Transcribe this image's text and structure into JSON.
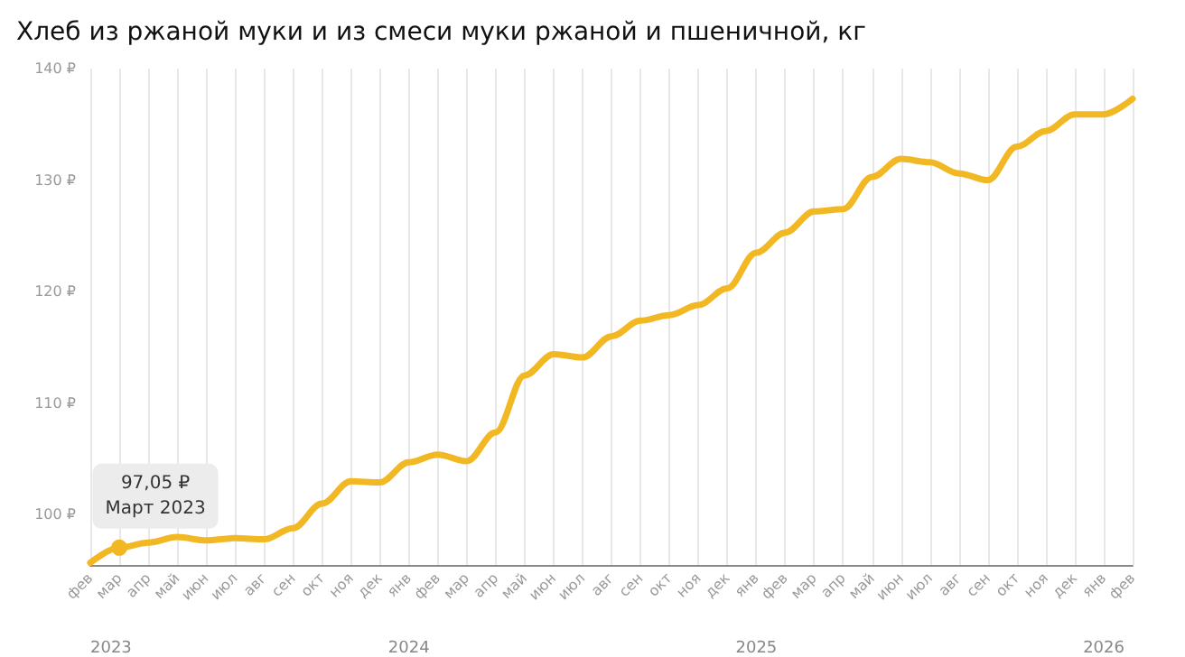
{
  "chart_data": {
    "type": "line",
    "title": "Хлеб из ржаной муки и из смеси муки ржаной и пшеничной, кг",
    "categories": [
      "фев",
      "мар",
      "апр",
      "май",
      "июн",
      "июл",
      "авг",
      "сен",
      "окт",
      "ноя",
      "дек",
      "янв",
      "фев",
      "мар",
      "апр",
      "май",
      "июн",
      "июл",
      "авг",
      "сен",
      "окт",
      "ноя",
      "дек",
      "янв",
      "фев",
      "мар",
      "апр",
      "май",
      "июн",
      "июл",
      "авг",
      "сен",
      "окт",
      "ноя",
      "дек",
      "янв",
      "фев"
    ],
    "series": [
      {
        "color": "#f2b824",
        "values": [
          95.7,
          97.05,
          97.5,
          98.0,
          97.7,
          97.9,
          97.8,
          98.8,
          101.0,
          103.0,
          102.9,
          104.7,
          105.4,
          104.8,
          107.4,
          112.5,
          114.4,
          114.1,
          116.0,
          117.4,
          117.9,
          118.8,
          120.3,
          123.5,
          125.3,
          127.2,
          127.4,
          130.3,
          131.9,
          131.6,
          130.6,
          130.0,
          133.0,
          134.4,
          135.9,
          135.9,
          137.3
        ]
      }
    ],
    "x2lim": [
      2023.083,
      2026.083
    ],
    "x2ticks": [
      {
        "value": 2023.083,
        "label": "2023"
      },
      2024,
      2025,
      2026
    ],
    "ylim": [
      95.5,
      140
    ],
    "yticks": [
      {
        "value": 100,
        "label": "100 ₽"
      },
      {
        "value": 110,
        "label": "110 ₽"
      },
      {
        "value": 120,
        "label": "120 ₽"
      },
      {
        "value": 130,
        "label": "130 ₽"
      },
      {
        "value": 140,
        "label": "140 ₽"
      }
    ],
    "annotations": [
      {
        "text": "97,05 ₽\nМарт 2023",
        "x": "мар",
        "y": 97.05
      }
    ],
    "grid": "x",
    "marker": "none",
    "line_style": "solid"
  }
}
